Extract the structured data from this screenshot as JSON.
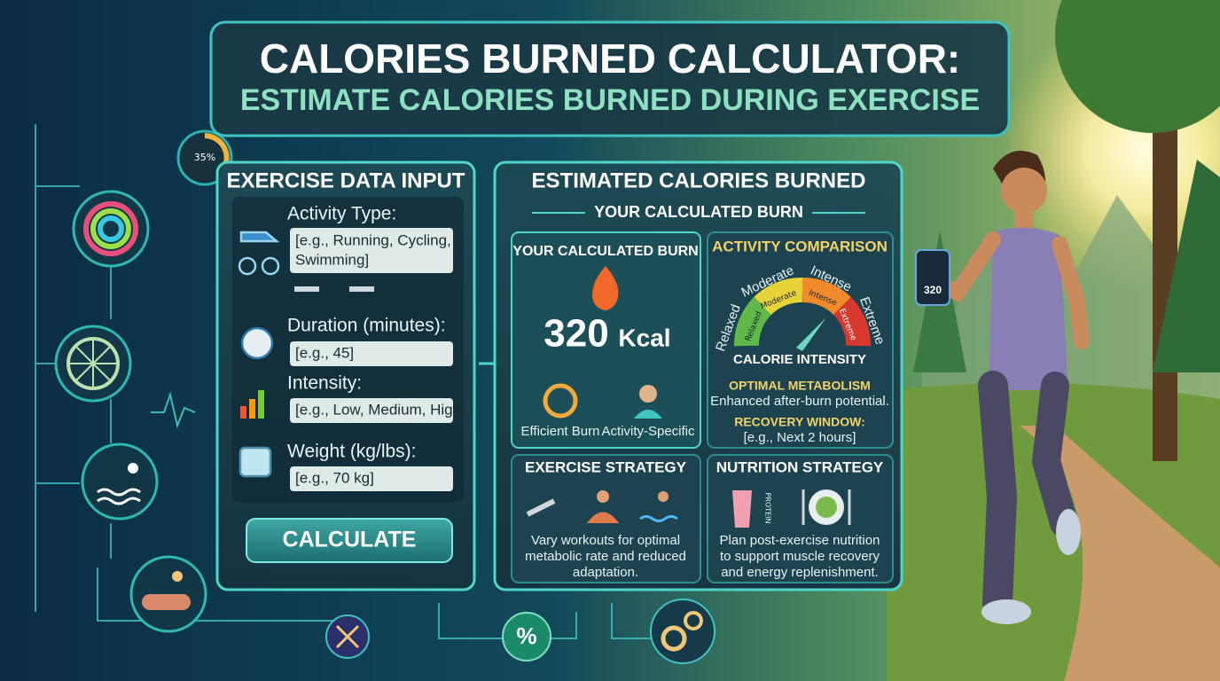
{
  "title": {
    "line1": "CALORIES BURNED CALCULATOR:",
    "line2": "ESTIMATE CALORIES BURNED DURING EXERCISE"
  },
  "badge": "35%",
  "input_panel": {
    "heading": "EXERCISE DATA INPUT",
    "fields": [
      {
        "label": "Activity Type:",
        "placeholder": [
          "[e.g., Running, Cycling,",
          "Swimming]"
        ]
      },
      {
        "label": "Duration (minutes):",
        "placeholder": [
          "[e.g., 45]"
        ]
      },
      {
        "label": "Intensity:",
        "placeholder": [
          "[e.g., Low, Medium, High]"
        ]
      },
      {
        "label": "Weight (kg/lbs):",
        "placeholder": [
          "[e.g., 70 kg]"
        ]
      }
    ],
    "button": "CALCULATE"
  },
  "results_panel": {
    "heading": "ESTIMATED CALORIES BURNED",
    "subheading": "YOUR CALCULATED BURN",
    "burn_card": {
      "title": "YOUR CALCULATED BURN",
      "value": "320",
      "unit": "Kcal",
      "badges": [
        "Efficient Burn",
        "Activity-Specific"
      ]
    },
    "comparison_card": {
      "title": "ACTIVITY COMPARISON",
      "outer_labels": [
        "Relaxed",
        "Moderate",
        "Intense",
        "Extreme"
      ],
      "inner_labels": [
        "Relaxed",
        "Moderate",
        "Intense",
        "Extreme"
      ],
      "gauge_title": "CALORIE INTENSITY",
      "metabolism_title": "OPTIMAL METABOLISM",
      "metabolism_text": "Enhanced after-burn potential.",
      "recovery_title": "RECOVERY WINDOW:",
      "recovery_text": "[e.g., Next 2 hours]"
    },
    "exercise_card": {
      "title": "EXERCISE STRATEGY",
      "text": [
        "Vary workouts for optimal",
        "metabolic rate and reduced",
        "adaptation."
      ]
    },
    "nutrition_card": {
      "title": "NUTRITION STRATEGY",
      "protein": "PROTEIN",
      "text": [
        "Plan post-exercise nutrition",
        "to support muscle recovery",
        "and energy replenishment."
      ]
    }
  },
  "footer_icon": "%",
  "phone": "320"
}
